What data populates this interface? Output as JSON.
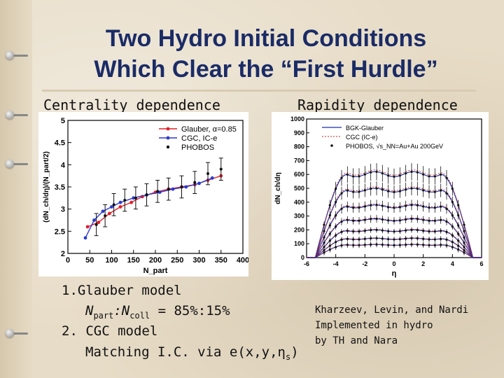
{
  "title": {
    "line1": "Two Hydro Initial Conditions",
    "line2": "Which Clear the “First Hurdle”"
  },
  "captions": {
    "left": "Centrality dependence",
    "right": "Rapidity dependence"
  },
  "chart_data": [
    {
      "type": "line",
      "ylabel": "(dN_ch/dη)/(N_part/2)",
      "xlabel": "N_part",
      "xlim": [
        0,
        400
      ],
      "ylim": [
        2,
        5
      ],
      "xticks": [
        "0",
        "50",
        "100",
        "150",
        "200",
        "250",
        "300",
        "350",
        "400"
      ],
      "yticks": [
        "2",
        "2.5",
        "3",
        "3.5",
        "4",
        "4.5",
        "5"
      ],
      "legend_position": "top-right",
      "series": [
        {
          "name": "Glauber, α=0.85",
          "color": "#e0202a",
          "x": [
            45,
            70,
            95,
            120,
            145,
            170,
            200,
            230,
            260,
            290,
            320,
            350
          ],
          "y": [
            2.6,
            2.7,
            2.9,
            3.05,
            3.15,
            3.28,
            3.38,
            3.45,
            3.5,
            3.55,
            3.65,
            3.75
          ]
        },
        {
          "name": "CGC, IC-e",
          "color": "#2a3ad0",
          "x": [
            40,
            60,
            80,
            100,
            120,
            150,
            180,
            210,
            240,
            270,
            300,
            330
          ],
          "y": [
            2.35,
            2.75,
            2.95,
            3.05,
            3.15,
            3.25,
            3.32,
            3.38,
            3.45,
            3.5,
            3.58,
            3.7
          ]
        },
        {
          "name": "PHOBOS",
          "color": "#111111",
          "x": [
            65,
            85,
            105,
            130,
            155,
            180,
            205,
            230,
            260,
            290,
            320,
            350
          ],
          "y": [
            2.65,
            2.85,
            3.1,
            3.2,
            3.25,
            3.32,
            3.4,
            3.45,
            3.5,
            3.6,
            3.8,
            3.9
          ],
          "err": [
            0.25,
            0.25,
            0.25,
            0.25,
            0.25,
            0.25,
            0.25,
            0.25,
            0.25,
            0.25,
            0.25,
            0.25
          ]
        }
      ]
    },
    {
      "type": "line",
      "ylabel": "dN_ch/dη",
      "xlabel": "η",
      "xlim": [
        -6,
        6
      ],
      "ylim": [
        0,
        1000
      ],
      "xticks": [
        "-6",
        "-4",
        "-2",
        "0",
        "2",
        "4",
        "6"
      ],
      "yticks": [
        "0",
        "100",
        "200",
        "300",
        "400",
        "500",
        "600",
        "700",
        "800",
        "900",
        "1000"
      ],
      "legend_position": "top-left",
      "legend": [
        "BGK-Glauber",
        "CGC (IC-e)",
        "PHOBOS, √s_NN=Au+Au 200GeV"
      ],
      "colors": {
        "bgk": "#1c2fa8",
        "cgc": "#c02020",
        "phobos": "#111111"
      },
      "centrality_classes": [
        {
          "plateau": 620,
          "edge": 560
        },
        {
          "plateau": 500,
          "edge": 455
        },
        {
          "plateau": 380,
          "edge": 345
        },
        {
          "plateau": 280,
          "edge": 255
        },
        {
          "plateau": 200,
          "edge": 180
        },
        {
          "plateau": 140,
          "edge": 125
        },
        {
          "plateau": 95,
          "edge": 85
        }
      ],
      "eta_points": [
        -4.8,
        -4.4,
        -4.0,
        -3.6,
        -3.2,
        -2.8,
        -2.4,
        -2.0,
        -1.6,
        -1.2,
        -0.8,
        -0.4,
        0,
        0.4,
        0.8,
        1.2,
        1.6,
        2.0,
        2.4,
        2.8,
        3.2,
        3.6,
        4.0,
        4.4,
        4.8
      ],
      "width": 5.4
    }
  ],
  "list": {
    "item1": "1.Glauber model",
    "item1_sub_n1": "N",
    "item1_sub_s1": "part",
    "item1_sub_mid": ":N",
    "item1_sub_s2": "coll",
    "item1_sub_tail": " = 85%:15%",
    "item2": "2. CGC model",
    "item2_sub_pre": "Matching I.C. via e(x,y,η",
    "item2_sub_s": "s",
    "item2_sub_post": ")"
  },
  "credit": {
    "line1": "Kharzeev, Levin, and Nardi",
    "line2": "Implemented in hydro",
    "line3": "by TH and Nara"
  }
}
